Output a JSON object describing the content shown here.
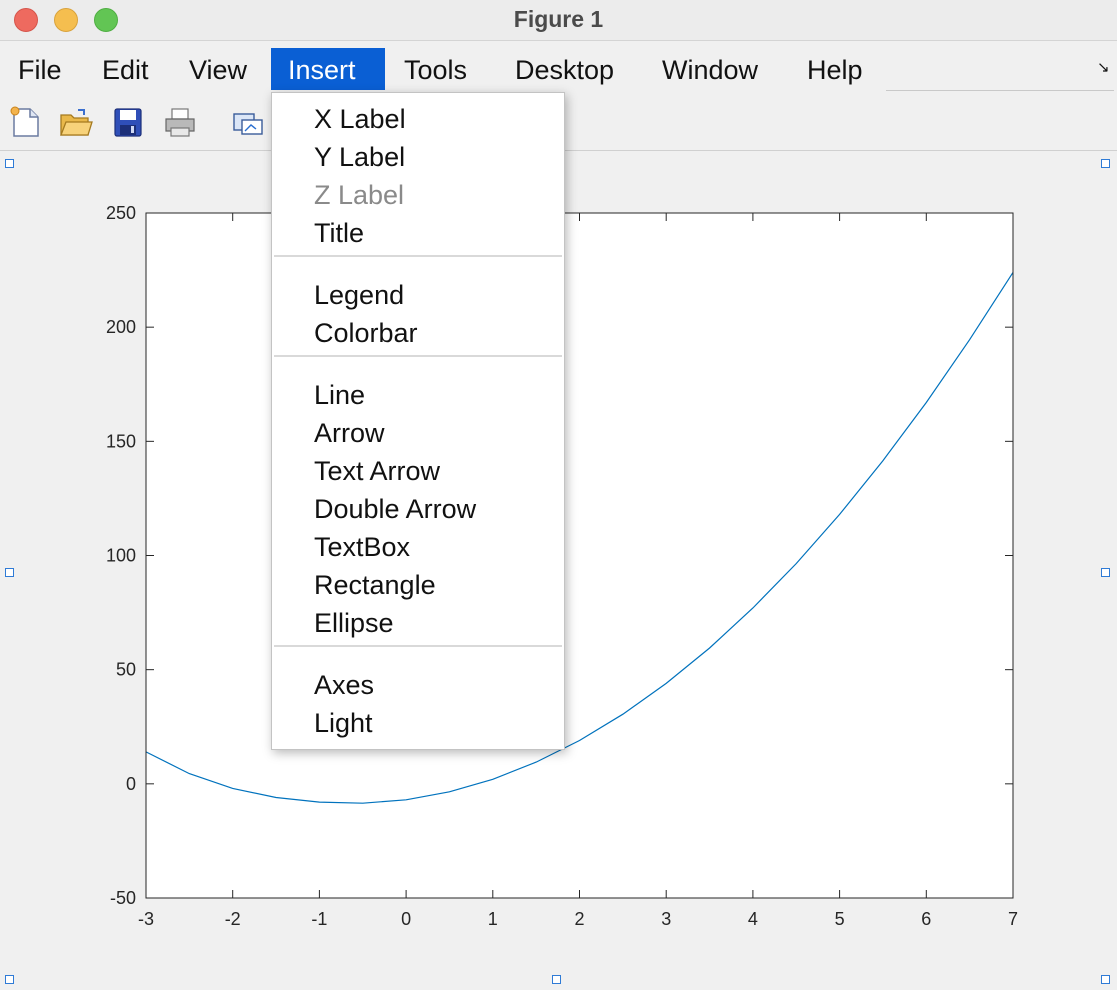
{
  "window": {
    "title": "Figure 1"
  },
  "menubar": {
    "items": [
      {
        "label": "File"
      },
      {
        "label": "Edit"
      },
      {
        "label": "View"
      },
      {
        "label": "Insert",
        "active": true
      },
      {
        "label": "Tools"
      },
      {
        "label": "Desktop"
      },
      {
        "label": "Window"
      },
      {
        "label": "Help"
      }
    ]
  },
  "toolbar": {
    "buttons": [
      "new-figure-icon",
      "open-file-icon",
      "save-icon",
      "print-icon",
      "link-plot-icon"
    ]
  },
  "insert_menu": {
    "groups": [
      [
        {
          "label": "X Label",
          "enabled": true
        },
        {
          "label": "Y Label",
          "enabled": true
        },
        {
          "label": "Z Label",
          "enabled": false
        },
        {
          "label": "Title",
          "enabled": true
        }
      ],
      [
        {
          "label": "Legend",
          "enabled": true
        },
        {
          "label": "Colorbar",
          "enabled": true
        }
      ],
      [
        {
          "label": "Line",
          "enabled": true
        },
        {
          "label": "Arrow",
          "enabled": true
        },
        {
          "label": "Text Arrow",
          "enabled": true
        },
        {
          "label": "Double Arrow",
          "enabled": true
        },
        {
          "label": "TextBox",
          "enabled": true
        },
        {
          "label": "Rectangle",
          "enabled": true
        },
        {
          "label": "Ellipse",
          "enabled": true
        }
      ],
      [
        {
          "label": "Axes",
          "enabled": true
        },
        {
          "label": "Light",
          "enabled": true
        }
      ]
    ]
  },
  "colors": {
    "menu_highlight": "#0a5fd4",
    "line": "#0072bd",
    "selection_handle": "#2f7bd6"
  },
  "chart_data": {
    "type": "line",
    "title": "",
    "xlabel": "",
    "ylabel": "",
    "xlim": [
      -3,
      7
    ],
    "ylim": [
      -50,
      250
    ],
    "xticks": [
      -3,
      -2,
      -1,
      0,
      1,
      2,
      3,
      4,
      5,
      6,
      7
    ],
    "yticks": [
      -50,
      0,
      50,
      100,
      150,
      200,
      250
    ],
    "grid": false,
    "series": [
      {
        "x": [
          -3,
          -2.5,
          -2,
          -1.5,
          -1,
          -0.5,
          0,
          0.5,
          1,
          1.5,
          2,
          2.5,
          3,
          3.5,
          4,
          4.5,
          5,
          5.5,
          6,
          6.5,
          7
        ],
        "y": [
          14,
          4.5,
          -2,
          -6,
          -8,
          -8.5,
          -7,
          -3.5,
          2,
          9.5,
          19,
          30.5,
          44,
          59.5,
          77,
          96.5,
          118,
          141.5,
          167,
          194.5,
          224
        ]
      }
    ]
  }
}
